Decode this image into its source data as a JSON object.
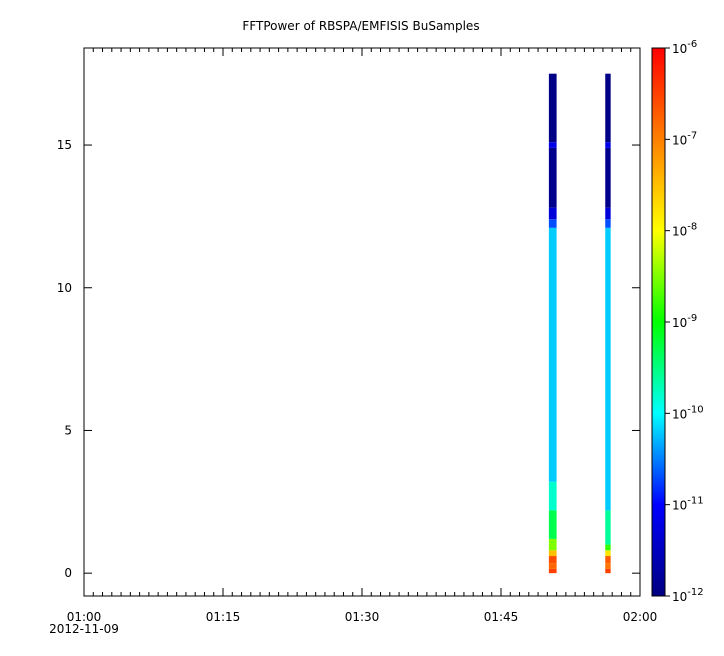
{
  "chart_data": {
    "type": "heatmap",
    "title": "FFTPower of RBSPA/EMFISIS  BuSamples",
    "xlabel": "",
    "ylabel": "",
    "x_axis": {
      "start": "01:00",
      "end": "02:00",
      "ticks": [
        "01:00",
        "01:15",
        "01:30",
        "01:45",
        "02:00"
      ],
      "date_label": "2012-11-09",
      "minor_tick_minutes": 1
    },
    "y_axis": {
      "range": [
        -0.8,
        18.4
      ],
      "ticks": [
        0,
        5,
        10,
        15
      ]
    },
    "colorbar": {
      "scale": "log",
      "range": [
        1e-12,
        1e-06
      ],
      "tick_labels": [
        {
          "base": "10",
          "exp": "-12",
          "value": 1e-12
        },
        {
          "base": "10",
          "exp": "-11",
          "value": 1e-11
        },
        {
          "base": "10",
          "exp": "-10",
          "value": 1e-10
        },
        {
          "base": "10",
          "exp": "-9",
          "value": 1e-09
        },
        {
          "base": "10",
          "exp": "-8",
          "value": 1e-08
        },
        {
          "base": "10",
          "exp": "-7",
          "value": 1e-07
        },
        {
          "base": "10",
          "exp": "-6",
          "value": 1e-06
        }
      ],
      "colors": [
        "#000080",
        "#0000ff",
        "#00ffff",
        "#00ff00",
        "#ffff00",
        "#ff8000",
        "#ff0000"
      ]
    },
    "data_blocks": [
      {
        "time_start": "01:50:10",
        "time_end": "01:51:00",
        "freq_max": 17.5,
        "profile": [
          {
            "f0": 0.0,
            "f1": 0.15,
            "log10_power": -6.5
          },
          {
            "f0": 0.15,
            "f1": 0.35,
            "log10_power": -6.8
          },
          {
            "f0": 0.35,
            "f1": 0.6,
            "log10_power": -6.6
          },
          {
            "f0": 0.6,
            "f1": 0.8,
            "log10_power": -7.5
          },
          {
            "f0": 0.8,
            "f1": 1.2,
            "log10_power": -8.5
          },
          {
            "f0": 1.2,
            "f1": 2.2,
            "log10_power": -9.3
          },
          {
            "f0": 2.2,
            "f1": 3.2,
            "log10_power": -9.8
          },
          {
            "f0": 3.2,
            "f1": 12.1,
            "log10_power": -10.2
          },
          {
            "f0": 12.1,
            "f1": 12.4,
            "log10_power": -10.7
          },
          {
            "f0": 12.4,
            "f1": 12.8,
            "log10_power": -11.3
          },
          {
            "f0": 12.8,
            "f1": 14.9,
            "log10_power": -11.9
          },
          {
            "f0": 14.9,
            "f1": 15.1,
            "log10_power": -11.2
          },
          {
            "f0": 15.1,
            "f1": 17.5,
            "log10_power": -11.95
          }
        ]
      },
      {
        "time_start": "01:56:15",
        "time_end": "01:56:50",
        "freq_max": 17.5,
        "profile": [
          {
            "f0": 0.0,
            "f1": 0.15,
            "log10_power": -6.5
          },
          {
            "f0": 0.15,
            "f1": 0.35,
            "log10_power": -6.9
          },
          {
            "f0": 0.35,
            "f1": 0.6,
            "log10_power": -6.7
          },
          {
            "f0": 0.6,
            "f1": 0.8,
            "log10_power": -7.8
          },
          {
            "f0": 0.8,
            "f1": 1.0,
            "log10_power": -8.8
          },
          {
            "f0": 1.0,
            "f1": 2.2,
            "log10_power": -9.6
          },
          {
            "f0": 2.2,
            "f1": 12.1,
            "log10_power": -10.2
          },
          {
            "f0": 12.1,
            "f1": 12.4,
            "log10_power": -10.7
          },
          {
            "f0": 12.4,
            "f1": 12.8,
            "log10_power": -11.3
          },
          {
            "f0": 12.8,
            "f1": 14.9,
            "log10_power": -11.9
          },
          {
            "f0": 14.9,
            "f1": 15.1,
            "log10_power": -11.2
          },
          {
            "f0": 15.1,
            "f1": 17.5,
            "log10_power": -11.95
          }
        ]
      }
    ]
  }
}
